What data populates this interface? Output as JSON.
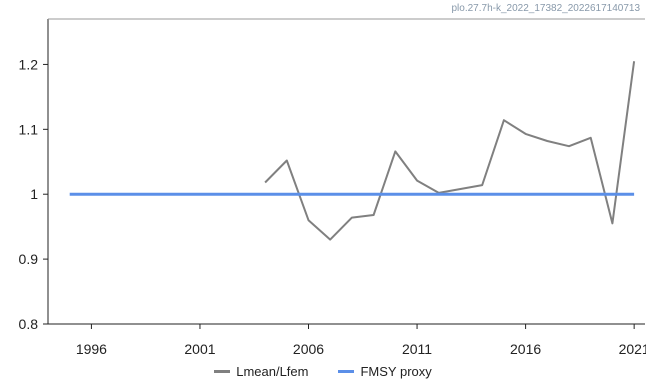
{
  "watermark": "plo.27.7h-k_2022_17382_2022617140713",
  "chart_data": {
    "type": "line",
    "title": "",
    "xlabel": "",
    "ylabel": "",
    "xlim": [
      1994,
      2021.5
    ],
    "ylim": [
      0.8,
      1.27
    ],
    "x_ticks": [
      1996,
      2001,
      2006,
      2011,
      2016,
      2021
    ],
    "x_tick_labels": [
      "1996",
      "2001",
      "2006",
      "2011",
      "2016",
      "2021"
    ],
    "y_ticks": [
      0.8,
      0.9,
      1.0,
      1.1,
      1.2
    ],
    "y_tick_labels": [
      "0.8",
      "0.9",
      "1",
      "1.1",
      "1.2"
    ],
    "grid": false,
    "legend_position": "bottom",
    "series": [
      {
        "name": "Lmean/Lfem",
        "color": "#808080",
        "x": [
          2004,
          2005,
          2006,
          2007,
          2008,
          2009,
          2010,
          2011,
          2012,
          2013,
          2014,
          2015,
          2016,
          2017,
          2018,
          2019,
          2020,
          2021
        ],
        "y": [
          1.018,
          1.052,
          0.96,
          0.93,
          0.964,
          0.968,
          1.066,
          1.021,
          1.002,
          1.008,
          1.014,
          1.114,
          1.093,
          1.082,
          1.074,
          1.087,
          0.955,
          1.205
        ]
      },
      {
        "name": "FMSY proxy",
        "color": "#5b8fe8",
        "x": [
          1995,
          2021
        ],
        "y": [
          1.0,
          1.0
        ]
      }
    ]
  }
}
